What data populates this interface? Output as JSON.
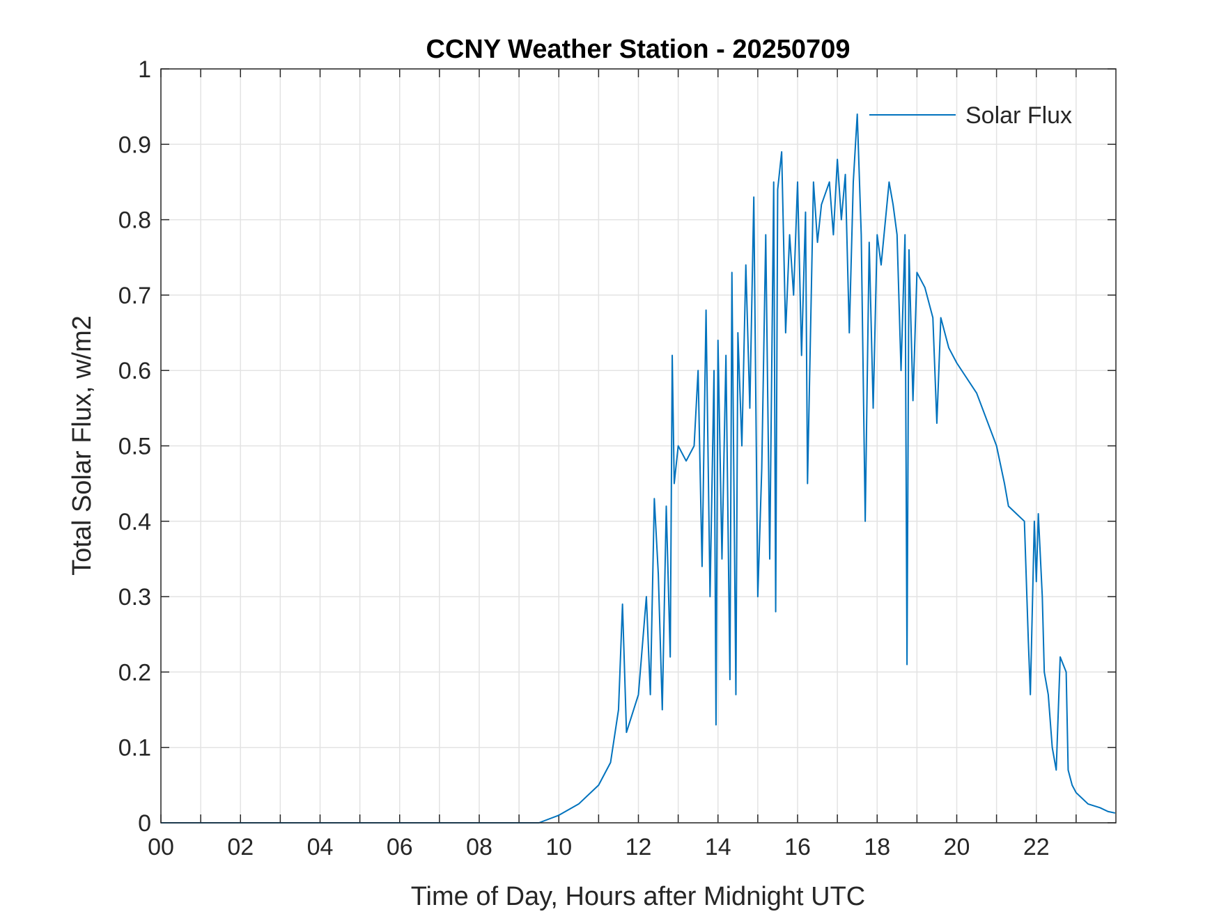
{
  "chart_data": {
    "type": "line",
    "title": "CCNY Weather Station - 20250709",
    "xlabel": "Time of Day, Hours after Midnight UTC",
    "ylabel": "Total Solar Flux, w/m2",
    "xlim": [
      0,
      24
    ],
    "ylim": [
      0,
      1
    ],
    "xticks": [
      {
        "value": 0,
        "label": "00"
      },
      {
        "value": 2,
        "label": "02"
      },
      {
        "value": 4,
        "label": "04"
      },
      {
        "value": 6,
        "label": "06"
      },
      {
        "value": 8,
        "label": "08"
      },
      10,
      12,
      14,
      16,
      18,
      20,
      22
    ],
    "xminorticks": [
      1,
      3,
      5,
      7,
      9,
      11,
      13,
      15,
      17,
      19,
      21,
      23
    ],
    "yticks": [
      0,
      0.1,
      0.2,
      0.3,
      0.4,
      0.5,
      0.6,
      0.7,
      0.8,
      0.9,
      1
    ],
    "grid": true,
    "legend": "upper-right",
    "series": [
      {
        "name": "Solar Flux",
        "color": "#0072bd",
        "x": [
          0,
          5,
          9.5,
          10,
          10.5,
          11,
          11.3,
          11.5,
          11.6,
          11.7,
          12,
          12.2,
          12.3,
          12.4,
          12.5,
          12.6,
          12.7,
          12.8,
          12.85,
          12.9,
          13,
          13.2,
          13.4,
          13.5,
          13.6,
          13.7,
          13.8,
          13.9,
          13.95,
          14,
          14.1,
          14.2,
          14.3,
          14.35,
          14.45,
          14.5,
          14.6,
          14.7,
          14.8,
          14.9,
          15,
          15.1,
          15.2,
          15.3,
          15.4,
          15.45,
          15.5,
          15.6,
          15.7,
          15.8,
          15.9,
          16,
          16.1,
          16.2,
          16.25,
          16.4,
          16.5,
          16.6,
          16.8,
          16.9,
          17,
          17.1,
          17.2,
          17.3,
          17.4,
          17.5,
          17.6,
          17.7,
          17.8,
          17.9,
          18,
          18.1,
          18.3,
          18.4,
          18.5,
          18.6,
          18.7,
          18.75,
          18.8,
          18.9,
          19,
          19.2,
          19.4,
          19.5,
          19.6,
          19.8,
          20,
          20.5,
          21,
          21.2,
          21.3,
          21.5,
          21.7,
          21.8,
          21.85,
          21.95,
          22,
          22.05,
          22.15,
          22.2,
          22.3,
          22.4,
          22.5,
          22.6,
          22.75,
          22.8,
          22.9,
          23,
          23.3,
          23.6,
          23.8,
          23.98
        ],
        "values": [
          0,
          0,
          0,
          0.01,
          0.025,
          0.05,
          0.08,
          0.15,
          0.29,
          0.12,
          0.17,
          0.3,
          0.17,
          0.43,
          0.33,
          0.15,
          0.42,
          0.22,
          0.62,
          0.45,
          0.5,
          0.48,
          0.5,
          0.6,
          0.34,
          0.68,
          0.3,
          0.6,
          0.13,
          0.64,
          0.35,
          0.62,
          0.19,
          0.73,
          0.17,
          0.65,
          0.5,
          0.74,
          0.55,
          0.83,
          0.3,
          0.47,
          0.78,
          0.35,
          0.85,
          0.28,
          0.84,
          0.89,
          0.65,
          0.78,
          0.7,
          0.85,
          0.62,
          0.81,
          0.45,
          0.85,
          0.77,
          0.82,
          0.85,
          0.78,
          0.88,
          0.8,
          0.86,
          0.65,
          0.85,
          0.94,
          0.78,
          0.4,
          0.77,
          0.55,
          0.78,
          0.74,
          0.85,
          0.82,
          0.78,
          0.6,
          0.78,
          0.21,
          0.76,
          0.56,
          0.73,
          0.71,
          0.67,
          0.53,
          0.67,
          0.63,
          0.61,
          0.57,
          0.5,
          0.45,
          0.42,
          0.41,
          0.4,
          0.24,
          0.17,
          0.4,
          0.32,
          0.41,
          0.3,
          0.2,
          0.17,
          0.1,
          0.07,
          0.22,
          0.2,
          0.07,
          0.05,
          0.04,
          0.025,
          0.02,
          0.015,
          0.013
        ]
      }
    ]
  }
}
